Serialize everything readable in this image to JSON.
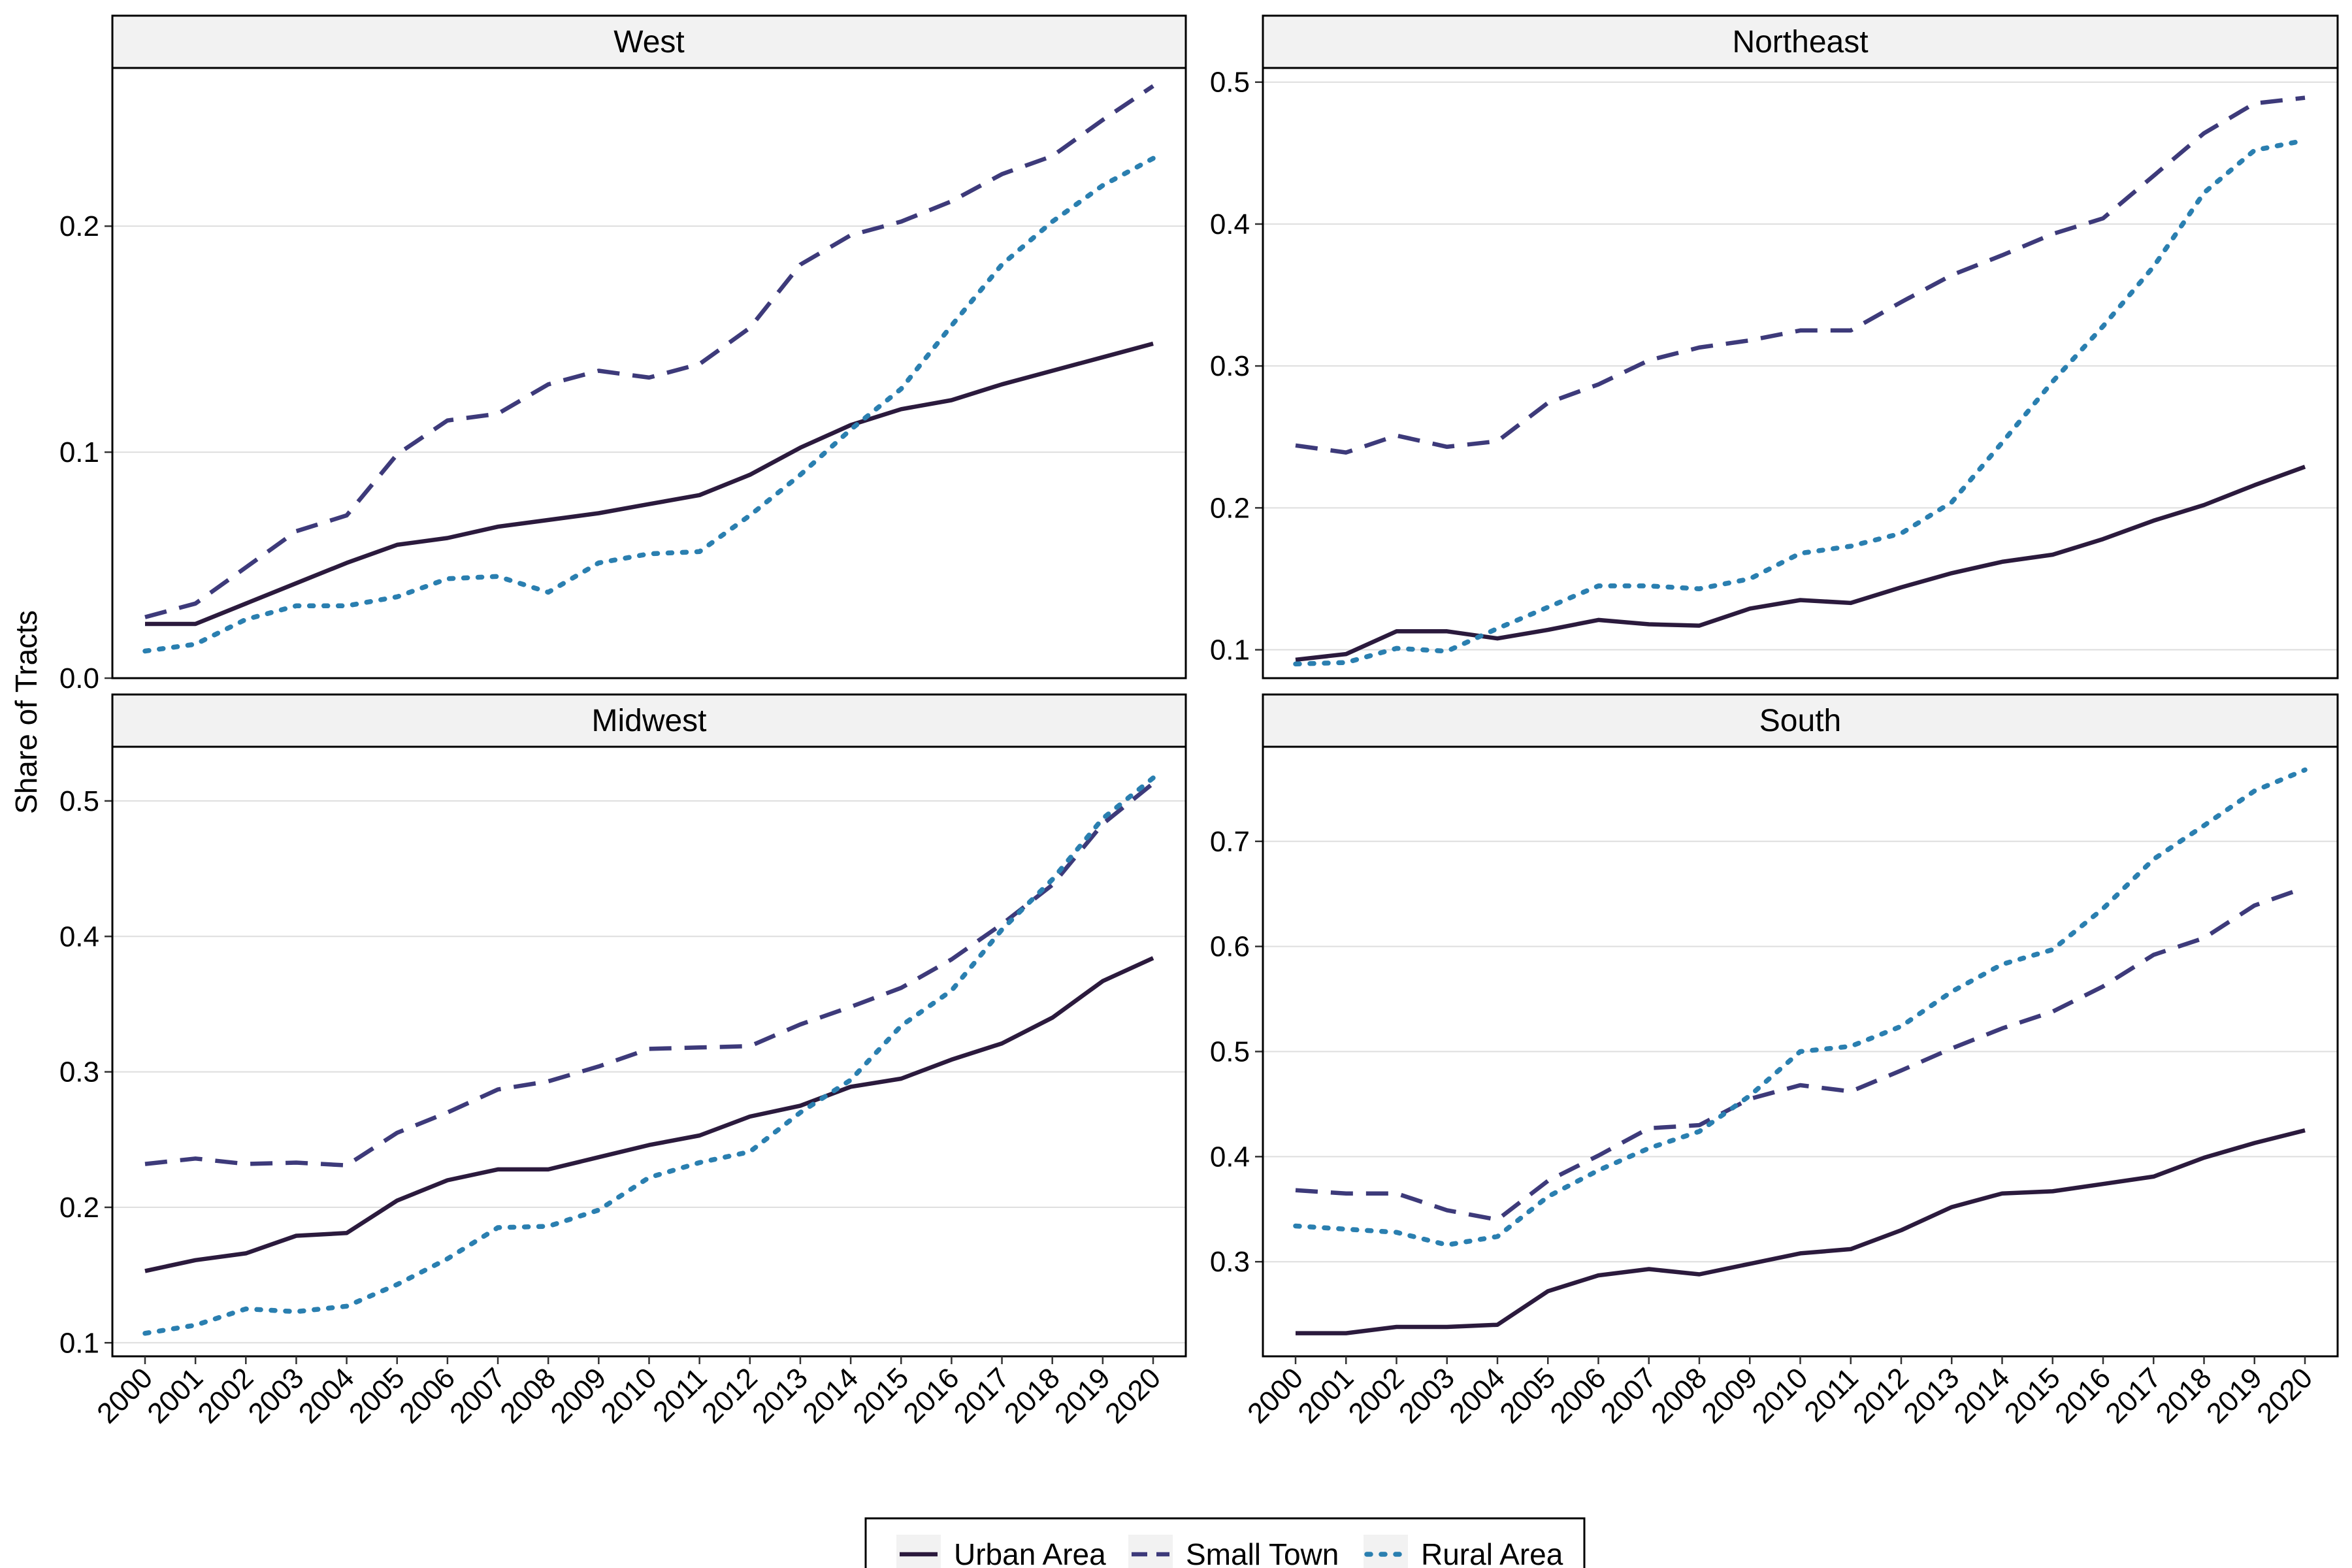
{
  "chart_data": {
    "type": "line",
    "ylabel": "Share of Tracts",
    "xlabel": "",
    "x": [
      "2000",
      "2001",
      "2002",
      "2003",
      "2004",
      "2005",
      "2006",
      "2007",
      "2008",
      "2009",
      "2010",
      "2011",
      "2012",
      "2013",
      "2014",
      "2015",
      "2016",
      "2017",
      "2018",
      "2019",
      "2020"
    ],
    "legend": {
      "placement": "bottom",
      "entries": [
        {
          "name": "Urban Area",
          "color": "#2b1a3d",
          "dash": "solid"
        },
        {
          "name": "Small Town",
          "color": "#3d3a7a",
          "dash": "dashed"
        },
        {
          "name": "Rural Area",
          "color": "#2a7fb0",
          "dash": "dotted"
        }
      ]
    },
    "grid": true,
    "panels": [
      {
        "title": "West",
        "ylim": [
          0,
          0.27
        ],
        "yticks": [
          0.0,
          0.1,
          0.2
        ],
        "ytick_labels": [
          "0.0",
          "0.1",
          "0.2"
        ],
        "series": [
          {
            "name": "Urban Area",
            "values": [
              0.024,
              0.024,
              0.033,
              0.042,
              0.051,
              0.059,
              0.062,
              0.067,
              0.07,
              0.073,
              0.077,
              0.081,
              0.09,
              0.102,
              0.112,
              0.119,
              0.123,
              0.13,
              0.136,
              0.142,
              0.148
            ]
          },
          {
            "name": "Small Town",
            "values": [
              0.027,
              0.033,
              0.049,
              0.065,
              0.072,
              0.099,
              0.114,
              0.117,
              0.13,
              0.136,
              0.133,
              0.139,
              0.155,
              0.183,
              0.196,
              0.202,
              0.211,
              0.223,
              0.231,
              0.247,
              0.262
            ]
          },
          {
            "name": "Rural Area",
            "values": [
              0.012,
              0.015,
              0.026,
              0.032,
              0.032,
              0.036,
              0.044,
              0.045,
              0.038,
              0.051,
              0.055,
              0.056,
              0.072,
              0.09,
              0.11,
              0.128,
              0.156,
              0.183,
              0.202,
              0.218,
              0.23
            ]
          }
        ]
      },
      {
        "title": "Northeast",
        "ylim": [
          0.08,
          0.51
        ],
        "yticks": [
          0.1,
          0.2,
          0.3,
          0.4,
          0.5
        ],
        "ytick_labels": [
          "0.1",
          "0.2",
          "0.3",
          "0.4",
          "0.5"
        ],
        "series": [
          {
            "name": "Urban Area",
            "values": [
              0.093,
              0.097,
              0.113,
              0.113,
              0.108,
              0.114,
              0.121,
              0.118,
              0.117,
              0.129,
              0.135,
              0.133,
              0.144,
              0.154,
              0.162,
              0.167,
              0.178,
              0.191,
              0.202,
              0.216,
              0.229
            ]
          },
          {
            "name": "Small Town",
            "values": [
              0.244,
              0.239,
              0.251,
              0.243,
              0.247,
              0.274,
              0.287,
              0.304,
              0.313,
              0.318,
              0.325,
              0.325,
              0.345,
              0.364,
              0.378,
              0.393,
              0.404,
              0.434,
              0.464,
              0.485,
              0.489
            ]
          },
          {
            "name": "Rural Area",
            "values": [
              0.09,
              0.091,
              0.101,
              0.099,
              0.115,
              0.13,
              0.145,
              0.145,
              0.143,
              0.15,
              0.168,
              0.173,
              0.182,
              0.204,
              0.246,
              0.289,
              0.328,
              0.37,
              0.422,
              0.452,
              0.459
            ]
          }
        ]
      },
      {
        "title": "Midwest",
        "ylim": [
          0.09,
          0.54
        ],
        "yticks": [
          0.1,
          0.2,
          0.3,
          0.4,
          0.5
        ],
        "ytick_labels": [
          "0.1",
          "0.2",
          "0.3",
          "0.4",
          "0.5"
        ],
        "series": [
          {
            "name": "Urban Area",
            "values": [
              0.153,
              0.161,
              0.166,
              0.179,
              0.181,
              0.205,
              0.22,
              0.228,
              0.228,
              0.237,
              0.246,
              0.253,
              0.267,
              0.275,
              0.289,
              0.295,
              0.309,
              0.321,
              0.34,
              0.367,
              0.384
            ]
          },
          {
            "name": "Small Town",
            "values": [
              0.232,
              0.236,
              0.232,
              0.233,
              0.231,
              0.255,
              0.27,
              0.287,
              0.293,
              0.304,
              0.317,
              0.318,
              0.319,
              0.335,
              0.348,
              0.362,
              0.383,
              0.409,
              0.438,
              0.483,
              0.513
            ]
          },
          {
            "name": "Rural Area",
            "values": [
              0.107,
              0.113,
              0.125,
              0.123,
              0.127,
              0.143,
              0.162,
              0.185,
              0.186,
              0.198,
              0.222,
              0.233,
              0.241,
              0.27,
              0.294,
              0.334,
              0.36,
              0.405,
              0.442,
              0.487,
              0.517
            ]
          }
        ]
      },
      {
        "title": "South",
        "ylim": [
          0.21,
          0.79
        ],
        "yticks": [
          0.3,
          0.4,
          0.5,
          0.6,
          0.7
        ],
        "ytick_labels": [
          "0.3",
          "0.4",
          "0.5",
          "0.6",
          "0.7"
        ],
        "series": [
          {
            "name": "Urban Area",
            "values": [
              0.232,
              0.232,
              0.238,
              0.238,
              0.24,
              0.272,
              0.287,
              0.293,
              0.288,
              0.298,
              0.308,
              0.312,
              0.33,
              0.352,
              0.365,
              0.367,
              0.374,
              0.381,
              0.399,
              0.413,
              0.425
            ]
          },
          {
            "name": "Small Town",
            "values": [
              0.368,
              0.365,
              0.365,
              0.349,
              0.34,
              0.377,
              0.401,
              0.427,
              0.43,
              0.455,
              0.468,
              0.462,
              0.482,
              0.503,
              0.522,
              0.538,
              0.562,
              0.592,
              0.608,
              0.639,
              0.656
            ]
          },
          {
            "name": "Rural Area",
            "values": [
              0.334,
              0.331,
              0.328,
              0.316,
              0.324,
              0.362,
              0.387,
              0.408,
              0.424,
              0.458,
              0.5,
              0.505,
              0.524,
              0.557,
              0.583,
              0.597,
              0.636,
              0.683,
              0.715,
              0.748,
              0.768
            ]
          }
        ]
      }
    ]
  }
}
